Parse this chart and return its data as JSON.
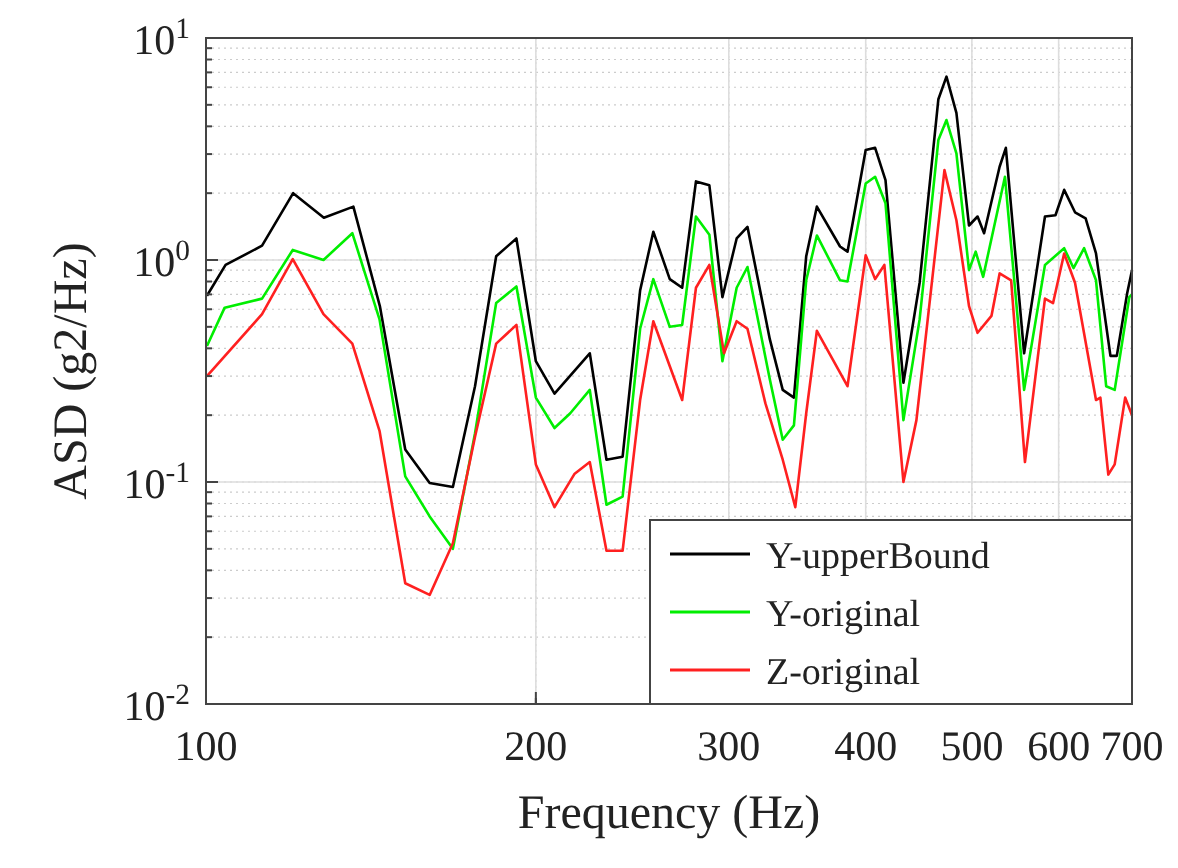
{
  "chart_data": {
    "type": "line",
    "xlabel": "Frequency (Hz)",
    "ylabel": "ASD (g2/Hz)",
    "log": "xy",
    "grid": true,
    "legend": "bottom right",
    "line_style": "solid",
    "marker": "none",
    "xlim": [
      100,
      700
    ],
    "xticks": [
      100,
      200,
      300,
      400,
      500,
      600,
      700
    ],
    "ylim": [
      0.01,
      10
    ],
    "yticks": [
      {
        "value": 0.01,
        "label": "10$^{-2}$"
      },
      {
        "value": 0.1,
        "label": "10$^{-1}$"
      },
      {
        "value": 1,
        "label": "10$^{0}$"
      },
      {
        "value": 10,
        "label": "10$^{1}$"
      }
    ],
    "series": [
      {
        "name": "Y-upperBound",
        "color": "#000000",
        "x": [
          100.2,
          104.2,
          112.5,
          120.1,
          128.1,
          136.3,
          144.1,
          152,
          160,
          168,
          176,
          184,
          192,
          200,
          208,
          224,
          232,
          240,
          249,
          256,
          265,
          272,
          280,
          288,
          296,
          305,
          312,
          327,
          336,
          344,
          353,
          361,
          379,
          385,
          400,
          408,
          417,
          433,
          448,
          466,
          474,
          484,
          497,
          506,
          513,
          530,
          537,
          558,
          583,
          596,
          607,
          621,
          635,
          649,
          669,
          678,
          693,
          700
        ],
        "values": [
          0.69,
          0.95,
          1.16,
          2.0,
          1.55,
          1.74,
          0.62,
          0.14,
          0.099,
          0.095,
          0.27,
          1.04,
          1.25,
          0.35,
          0.25,
          0.38,
          0.126,
          0.13,
          0.73,
          1.34,
          0.82,
          0.75,
          2.26,
          2.17,
          0.68,
          1.25,
          1.41,
          0.44,
          0.26,
          0.24,
          1.04,
          1.74,
          1.15,
          1.09,
          3.13,
          3.2,
          2.29,
          0.28,
          0.79,
          5.3,
          6.7,
          4.6,
          1.43,
          1.57,
          1.32,
          2.63,
          3.2,
          0.38,
          1.57,
          1.59,
          2.07,
          1.64,
          1.54,
          1.07,
          0.37,
          0.37,
          0.71,
          0.9
        ]
      },
      {
        "name": "Y-original",
        "color": "#00ee00",
        "x": [
          100.2,
          104,
          112.5,
          120,
          128,
          136,
          144,
          152,
          160,
          168,
          176,
          184,
          192,
          200,
          208,
          215,
          224,
          232,
          240,
          249,
          256,
          265,
          272,
          280,
          288,
          296,
          305,
          312,
          327,
          336,
          344,
          353,
          361,
          379,
          385,
          400,
          408,
          417,
          433,
          448,
          466,
          474,
          484,
          497,
          504,
          512,
          536,
          558,
          583,
          607,
          619,
          633,
          649,
          663,
          675,
          696,
          700
        ],
        "values": [
          0.41,
          0.61,
          0.67,
          1.11,
          1.0,
          1.32,
          0.54,
          0.106,
          0.07,
          0.05,
          0.166,
          0.64,
          0.76,
          0.24,
          0.175,
          0.204,
          0.26,
          0.079,
          0.086,
          0.49,
          0.82,
          0.5,
          0.51,
          1.57,
          1.3,
          0.35,
          0.75,
          0.93,
          0.29,
          0.155,
          0.18,
          0.81,
          1.29,
          0.81,
          0.8,
          2.21,
          2.37,
          1.8,
          0.19,
          0.54,
          3.47,
          4.27,
          3.02,
          0.9,
          1.09,
          0.84,
          2.37,
          0.26,
          0.95,
          1.13,
          0.92,
          1.13,
          0.81,
          0.27,
          0.26,
          0.68,
          0.7
        ]
      },
      {
        "name": "Z-original",
        "color": "#ff2020",
        "x": [
          100.2,
          112.5,
          120,
          128,
          136,
          144,
          152,
          160,
          168,
          176,
          184,
          192,
          200,
          208,
          217,
          224,
          232,
          240,
          249,
          256,
          272,
          280,
          288,
          297,
          305,
          312,
          324,
          336,
          345,
          353,
          361,
          385,
          400,
          408,
          416,
          433,
          445,
          472,
          484,
          497,
          506,
          521,
          530,
          543,
          559,
          583,
          593,
          607,
          621,
          649,
          655,
          666,
          675,
          690,
          700
        ],
        "values": [
          0.3,
          0.57,
          1.01,
          0.57,
          0.42,
          0.17,
          0.035,
          0.031,
          0.053,
          0.16,
          0.42,
          0.51,
          0.12,
          0.077,
          0.109,
          0.123,
          0.049,
          0.049,
          0.234,
          0.53,
          0.234,
          0.75,
          0.95,
          0.38,
          0.53,
          0.49,
          0.226,
          0.126,
          0.077,
          0.204,
          0.48,
          0.27,
          1.05,
          0.82,
          0.95,
          0.1,
          0.19,
          2.54,
          1.51,
          0.62,
          0.47,
          0.56,
          0.87,
          0.81,
          0.123,
          0.67,
          0.64,
          1.07,
          0.79,
          0.234,
          0.24,
          0.108,
          0.12,
          0.24,
          0.2
        ]
      }
    ]
  }
}
